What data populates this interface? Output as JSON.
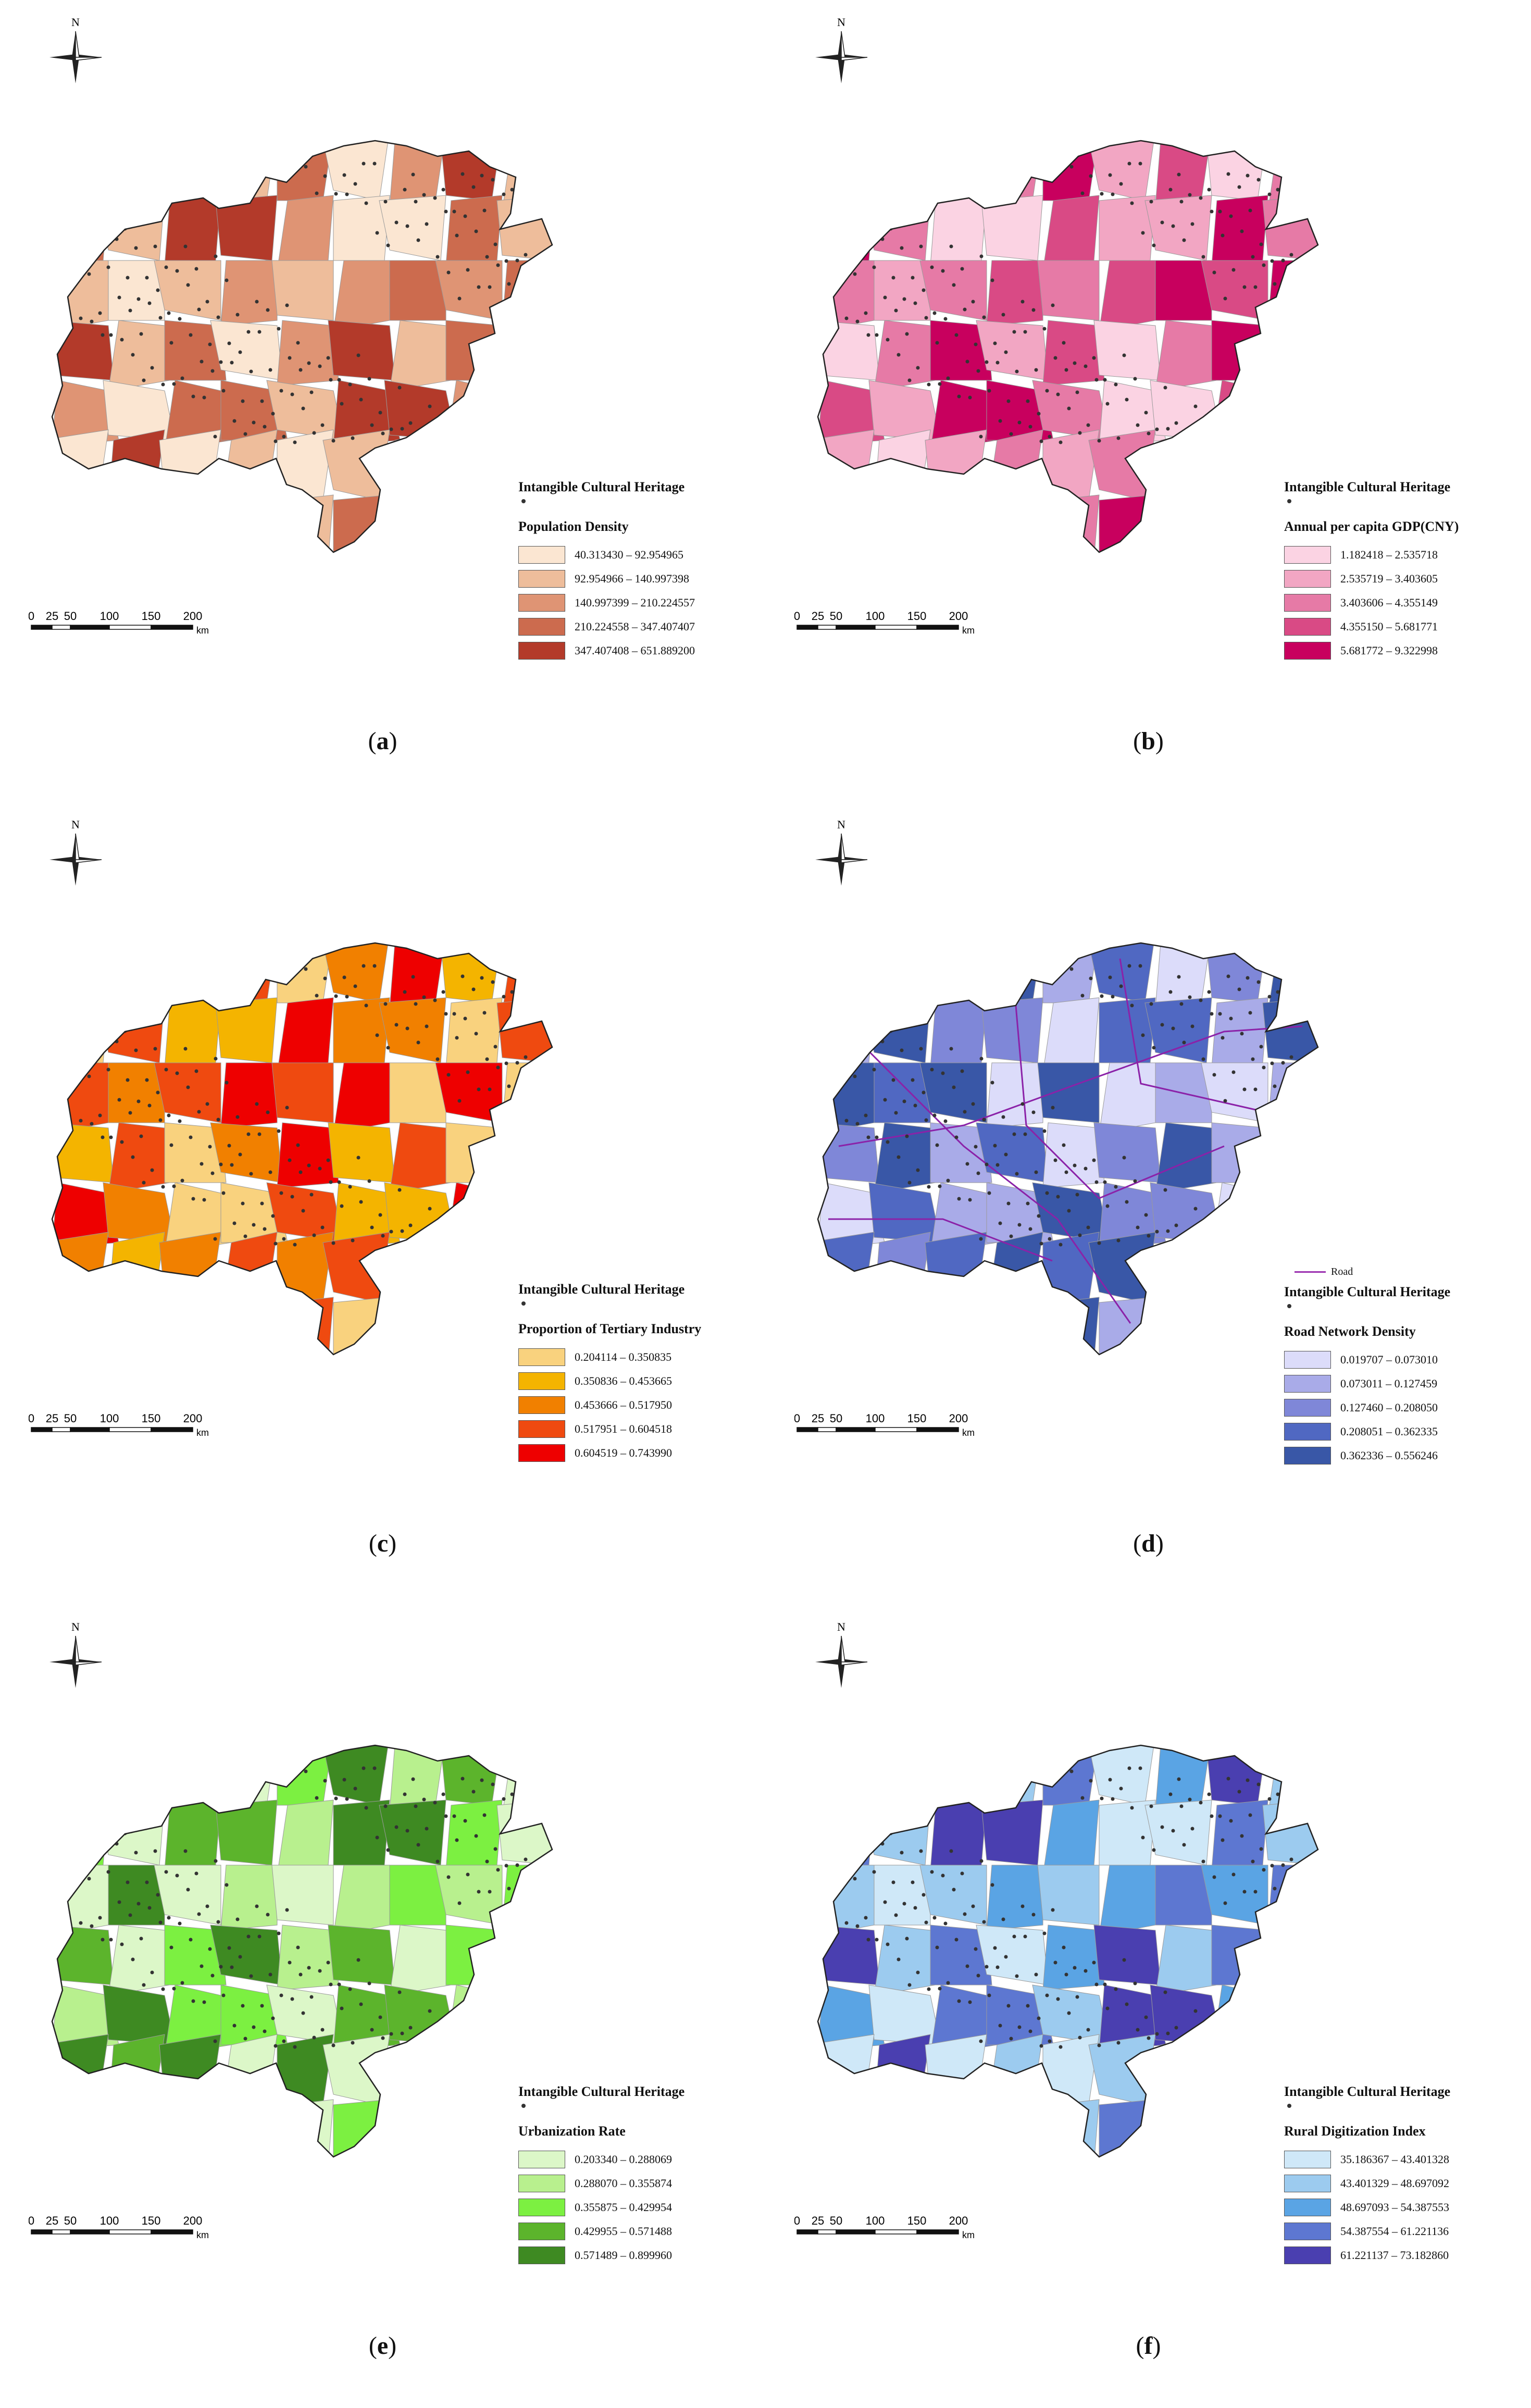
{
  "common": {
    "north": "N",
    "ich_label": "Intangible Cultural Heritage",
    "scale_ticks": [
      "0",
      "25",
      "50",
      "100",
      "150",
      "200"
    ],
    "scale_unit": "km"
  },
  "panels": [
    {
      "letter": "a",
      "legend_title": "Population Density",
      "classes": [
        "40.313430 – 92.954965",
        "92.954966 – 140.997398",
        "140.997399 – 210.224557",
        "210.224558 – 347.407407",
        "347.407408 – 651.889200"
      ],
      "colors": [
        "#fbe6d2",
        "#eebd9b",
        "#df9474",
        "#cc6b4e",
        "#b33a2a"
      ]
    },
    {
      "letter": "b",
      "legend_title": "Annual per capita GDP(CNY)",
      "classes": [
        "1.182418 – 2.535718",
        "2.535719 – 3.403605",
        "3.403606 – 4.355149",
        "4.355150 – 5.681771",
        "5.681772 – 9.322998"
      ],
      "colors": [
        "#fbd3e3",
        "#f2a6c3",
        "#e67aa6",
        "#d94a85",
        "#c8005e"
      ]
    },
    {
      "letter": "c",
      "legend_title": "Proportion of Tertiary Industry",
      "classes": [
        "0.204114 – 0.350835",
        "0.350836 – 0.453665",
        "0.453666 – 0.517950",
        "0.517951 – 0.604518",
        "0.604519 – 0.743990"
      ],
      "colors": [
        "#f9d27e",
        "#f4b400",
        "#f18000",
        "#ef4a10",
        "#ee0000"
      ]
    },
    {
      "letter": "d",
      "legend_title": "Road Network Density",
      "road_label": "Road",
      "classes": [
        "0.019707 – 0.073010",
        "0.073011 – 0.127459",
        "0.127460 – 0.208050",
        "0.208051 – 0.362335",
        "0.362336 – 0.556246"
      ],
      "colors": [
        "#dcdcfa",
        "#a9abe8",
        "#7f87d8",
        "#5068c2",
        "#3957a7"
      ]
    },
    {
      "letter": "e",
      "legend_title": "Urbanization Rate",
      "classes": [
        "0.203340 – 0.288069",
        "0.288070 – 0.355874",
        "0.355875 – 0.429954",
        "0.429955 – 0.571488",
        "0.571489 – 0.899960"
      ],
      "colors": [
        "#dcf7c8",
        "#b8f08e",
        "#7cf041",
        "#5cb42c",
        "#3e8a22"
      ]
    },
    {
      "letter": "f",
      "legend_title": "Rural Digitization Index",
      "classes": [
        "35.186367 – 43.401328",
        "43.401329 – 48.697092",
        "48.697093 – 54.387553",
        "54.387554 – 61.221136",
        "61.221137 – 73.182860"
      ],
      "colors": [
        "#cfe8f8",
        "#9ccbef",
        "#5aa4e4",
        "#5d77d1",
        "#4a3fb0"
      ]
    }
  ]
}
